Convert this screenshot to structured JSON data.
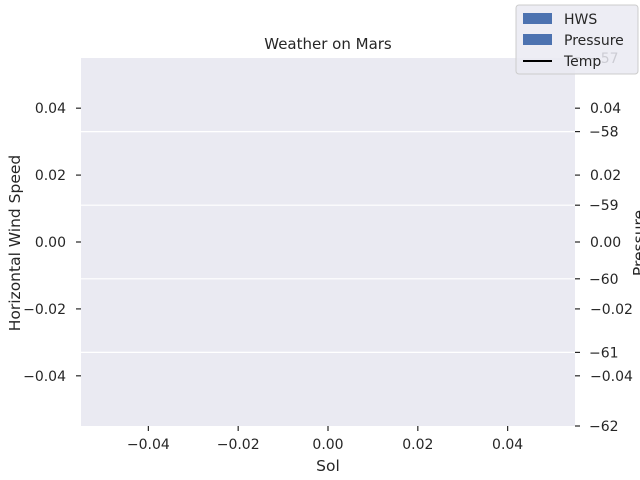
{
  "chart_data": {
    "type": "bar",
    "title": "Weather on Mars",
    "xlabel": "Sol",
    "ylabel_left": "Horizontal Wind Speed",
    "ylabel_right_1": "Pressure",
    "xlim": [
      -0.055,
      0.055
    ],
    "ylim_left": [
      -0.055,
      0.055
    ],
    "ylim_right_1": [
      -0.055,
      0.055
    ],
    "ylim_right_2": [
      -62,
      -57
    ],
    "x_ticks": [
      -0.04,
      -0.02,
      0.0,
      0.02,
      0.04
    ],
    "x_tick_labels": [
      "−0.04",
      "−0.02",
      "0.00",
      "0.02",
      "0.04"
    ],
    "y_left_ticks": [
      -0.04,
      -0.02,
      0.0,
      0.02,
      0.04
    ],
    "y_left_tick_labels": [
      "−0.04",
      "−0.02",
      "0.00",
      "0.02",
      "0.04"
    ],
    "y_right1_ticks": [
      -0.04,
      -0.02,
      0.0,
      0.02,
      0.04
    ],
    "y_right1_tick_labels": [
      "−0.04",
      "−0.02",
      "0.00",
      "0.02",
      "0.04"
    ],
    "y_right2_ticks": [
      -62,
      -61,
      -60,
      -59,
      -58,
      -57
    ],
    "y_right2_tick_labels": [
      "−62",
      "−61",
      "−60",
      "−59",
      "−58",
      "−57"
    ],
    "series": [
      {
        "name": "HWS",
        "kind": "bar",
        "color": "#4c72b0",
        "values": []
      },
      {
        "name": "Pressure",
        "kind": "bar",
        "color": "#4c72b0",
        "values": []
      },
      {
        "name": "Temp",
        "kind": "line",
        "color": "#000000",
        "values": []
      }
    ],
    "grid": true,
    "legend_position": "top-right",
    "colors": {
      "plot_background": "#eaeaf2",
      "grid": "#ffffff",
      "text": "#262626"
    }
  }
}
